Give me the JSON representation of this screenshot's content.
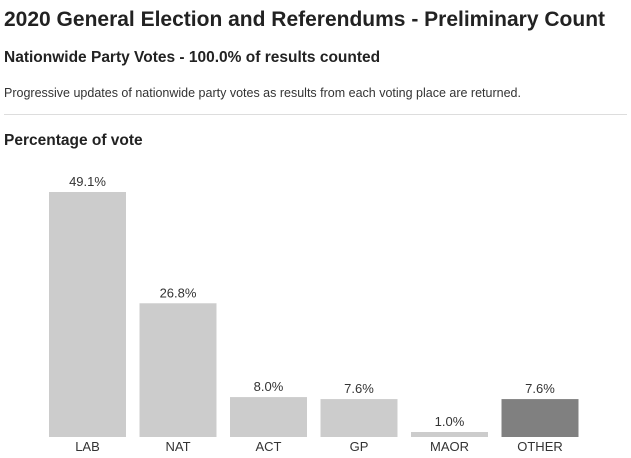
{
  "header": {
    "title": "2020 General Election and Referendums - Preliminary Count",
    "subtitle": "Nationwide Party Votes - 100.0% of results counted",
    "description": "Progressive updates of nationwide party votes as results from each voting place are returned."
  },
  "chart_data": {
    "type": "bar",
    "title": "Percentage of vote",
    "xlabel": "",
    "ylabel": "",
    "categories": [
      "LAB",
      "NAT",
      "ACT",
      "GP",
      "MAOR",
      "OTHER"
    ],
    "values": [
      49.1,
      26.8,
      8.0,
      7.6,
      1.0,
      7.6
    ],
    "data_labels": [
      "49.1%",
      "26.8%",
      "8.0%",
      "7.6%",
      "1.0%",
      "7.6%"
    ],
    "ylim": [
      0,
      49.1
    ],
    "grid": false,
    "legend": "none",
    "colors": {
      "default_bar": "#cccccc",
      "highlight_bar": "#808080",
      "highlight_category": "OTHER"
    }
  }
}
